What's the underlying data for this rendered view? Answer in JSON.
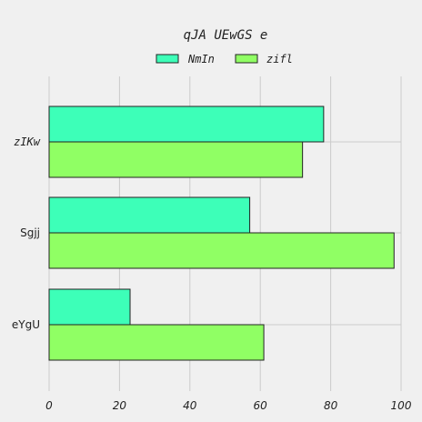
{
  "chart_data": {
    "type": "bar",
    "orientation": "horizontal",
    "title": "qJA UEwGS e",
    "categories": [
      "zIKw",
      "Sgjj",
      "eYgU"
    ],
    "category_fonts": [
      "monospace",
      "sans-serif",
      "sans-serif"
    ],
    "series": [
      {
        "name": "NmIn",
        "values": [
          78,
          57,
          23
        ],
        "color": "#3dffb8"
      },
      {
        "name": "zifl",
        "values": [
          72,
          98,
          61
        ],
        "color": "#90ff64"
      }
    ],
    "xlim": [
      0,
      100
    ],
    "xticks": [
      0,
      20,
      40,
      60,
      80,
      100
    ],
    "xlabel": "",
    "ylabel": "",
    "grid": true,
    "legend_position": "top-center"
  }
}
